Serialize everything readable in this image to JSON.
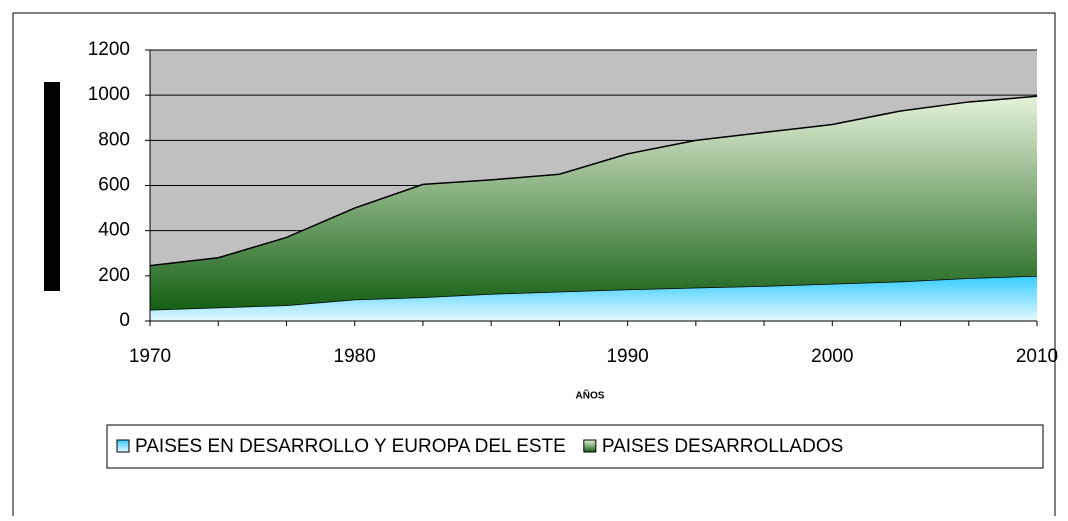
{
  "chart_data": {
    "type": "area",
    "stacked": true,
    "x_label": "AÑOS",
    "categories": [
      "1970",
      null,
      null,
      "1980",
      null,
      null,
      null,
      "1990",
      null,
      null,
      "2000",
      null,
      null,
      "2010"
    ],
    "series": [
      {
        "name": "PAISES EN DESARROLLO Y EUROPA DEL ESTE",
        "color": "#33ccff",
        "values": [
          50,
          60,
          70,
          95,
          105,
          120,
          130,
          140,
          148,
          155,
          165,
          175,
          190,
          200
        ]
      },
      {
        "name": "PAISES DESARROLLADOS",
        "color": "#2e7d2e",
        "values": [
          195,
          220,
          300,
          405,
          500,
          505,
          520,
          600,
          652,
          680,
          705,
          755,
          780,
          795
        ]
      }
    ],
    "ylim": [
      0,
      1200
    ],
    "yticks": [
      0,
      200,
      400,
      600,
      800,
      1000,
      1200
    ],
    "grid": true
  }
}
